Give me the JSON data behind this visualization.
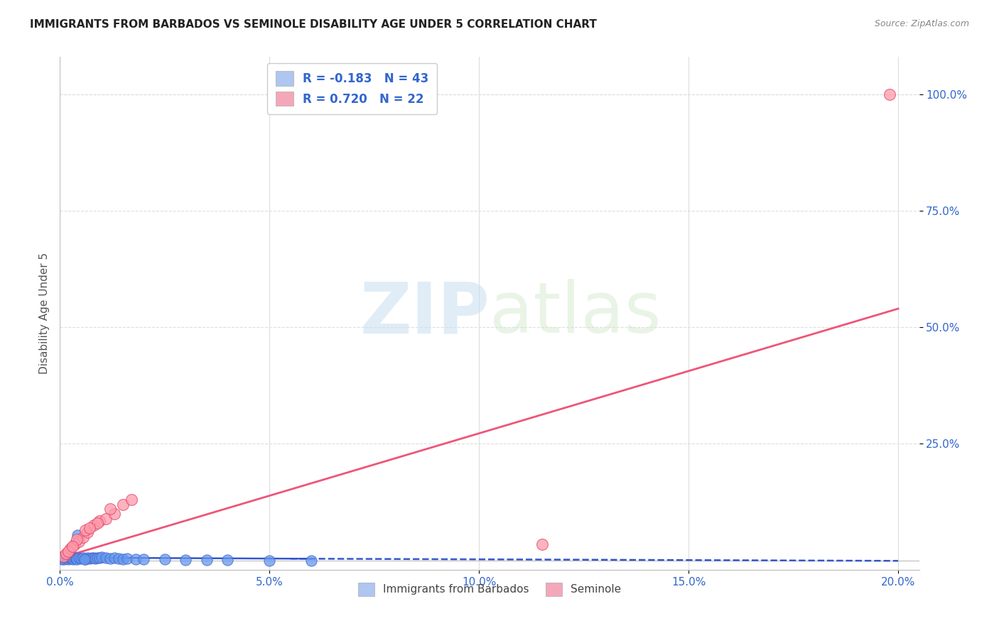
{
  "title": "IMMIGRANTS FROM BARBADOS VS SEMINOLE DISABILITY AGE UNDER 5 CORRELATION CHART",
  "source": "Source: ZipAtlas.com",
  "ylabel": "Disability Age Under 5",
  "x_tick_values": [
    0.0,
    5.0,
    10.0,
    15.0,
    20.0
  ],
  "y_tick_values": [
    25.0,
    50.0,
    75.0,
    100.0
  ],
  "xlim": [
    0.0,
    20.5
  ],
  "ylim": [
    -2.0,
    108.0
  ],
  "blue_R": -0.183,
  "blue_N": 43,
  "pink_R": 0.72,
  "pink_N": 22,
  "legend_labels": [
    "Immigrants from Barbados",
    "Seminole"
  ],
  "blue_scatter_color": "#6699ee",
  "pink_scatter_color": "#ff99aa",
  "blue_line_color": "#3355cc",
  "pink_line_color": "#ee5577",
  "blue_scatter_x": [
    0.05,
    0.08,
    0.1,
    0.12,
    0.15,
    0.18,
    0.2,
    0.22,
    0.25,
    0.28,
    0.3,
    0.32,
    0.35,
    0.38,
    0.4,
    0.45,
    0.5,
    0.55,
    0.6,
    0.65,
    0.7,
    0.75,
    0.8,
    0.85,
    0.9,
    0.95,
    1.0,
    1.1,
    1.2,
    1.3,
    1.4,
    1.5,
    1.6,
    1.8,
    2.0,
    2.5,
    3.0,
    3.5,
    4.0,
    5.0,
    6.0,
    0.42,
    0.58
  ],
  "blue_scatter_y": [
    0.3,
    0.5,
    0.2,
    0.8,
    0.4,
    0.6,
    0.3,
    0.5,
    0.7,
    0.4,
    0.5,
    0.3,
    0.6,
    0.4,
    0.3,
    0.5,
    0.4,
    0.6,
    0.3,
    0.5,
    0.4,
    0.6,
    0.5,
    0.4,
    0.6,
    0.5,
    0.7,
    0.5,
    0.4,
    0.5,
    0.4,
    0.3,
    0.4,
    0.3,
    0.2,
    0.2,
    0.1,
    0.1,
    0.1,
    0.0,
    0.0,
    5.5,
    0.3
  ],
  "pink_scatter_x": [
    0.08,
    0.15,
    0.25,
    0.35,
    0.45,
    0.55,
    0.65,
    0.8,
    0.95,
    1.1,
    1.3,
    1.5,
    1.7,
    0.2,
    0.4,
    0.6,
    0.9,
    1.2,
    0.3,
    0.7,
    11.5,
    19.8
  ],
  "pink_scatter_y": [
    0.8,
    1.5,
    2.5,
    3.5,
    4.0,
    5.0,
    6.0,
    7.5,
    8.5,
    9.0,
    10.0,
    12.0,
    13.0,
    2.0,
    4.5,
    6.5,
    8.0,
    11.0,
    3.0,
    7.0,
    3.5,
    100.0
  ],
  "pink_line_x0": 0.0,
  "pink_line_y0": 0.5,
  "pink_line_x1": 20.0,
  "pink_line_y1": 54.0,
  "blue_line_x0": 0.0,
  "blue_line_y0": 0.6,
  "blue_line_x1": 6.0,
  "blue_line_y1": 0.35,
  "blue_dashed_x0": 5.5,
  "blue_dashed_y0": 0.37,
  "blue_dashed_x1": 20.0,
  "blue_dashed_y1": -0.1,
  "watermark_zip": "ZIP",
  "watermark_atlas": "atlas",
  "background_color": "#ffffff",
  "grid_color": "#dddddd",
  "title_color": "#222222",
  "tick_label_color": "#3366cc"
}
